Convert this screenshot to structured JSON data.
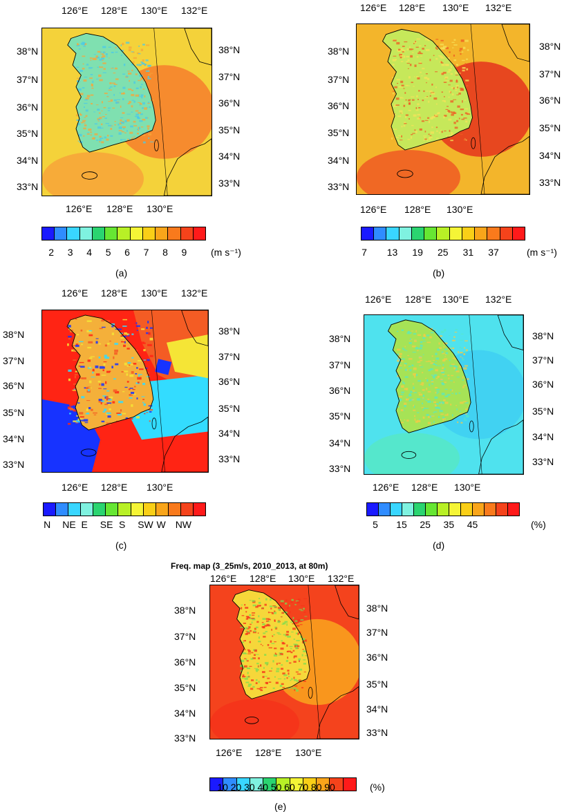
{
  "panels": [
    {
      "id": "a",
      "label": "(a)",
      "lon_top": [
        "126°E",
        "128°E",
        "130°E",
        "132°E"
      ],
      "lon_bottom": [
        "126°E",
        "128°E",
        "130°E"
      ],
      "lat_left": [
        "38°N",
        "37°N",
        "36°N",
        "35°N",
        "34°N",
        "33°N"
      ],
      "lat_right": [
        "38°N",
        "37°N",
        "36°N",
        "35°N",
        "34°N",
        "33°N"
      ],
      "colorbar": {
        "colors": [
          "#1a1aff",
          "#2f8cff",
          "#39d6ff",
          "#7ff2e0",
          "#2ad470",
          "#66e633",
          "#b8f026",
          "#f5f536",
          "#f9cf17",
          "#f9a51a",
          "#f97a1c",
          "#f5431b",
          "#ff1a1a"
        ],
        "labels": [
          "2",
          "3",
          "4",
          "5",
          "6",
          "7",
          "8",
          "9"
        ],
        "unit": "(m s⁻¹)"
      }
    },
    {
      "id": "b",
      "label": "(b)",
      "lon_top": [
        "126°E",
        "128°E",
        "130°E",
        "132°E"
      ],
      "lon_bottom": [
        "126°E",
        "128°E",
        "130°E"
      ],
      "lat_left": [
        "38°N",
        "37°N",
        "36°N",
        "35°N",
        "34°N",
        "33°N"
      ],
      "lat_right": [
        "38°N",
        "37°N",
        "36°N",
        "35°N",
        "34°N",
        "33°N"
      ],
      "colorbar": {
        "colors": [
          "#1a1aff",
          "#2f8cff",
          "#39d6ff",
          "#7ff2e0",
          "#2ad470",
          "#66e633",
          "#b8f026",
          "#f5f536",
          "#f9cf17",
          "#f9a51a",
          "#f97a1c",
          "#f5431b",
          "#ff1a1a"
        ],
        "labels": [
          "7",
          "13",
          "19",
          "25",
          "31",
          "37"
        ],
        "unit": "(m s⁻¹)"
      }
    },
    {
      "id": "c",
      "label": "(c)",
      "lon_top": [
        "126°E",
        "128°E",
        "130°E",
        "132°E"
      ],
      "lon_bottom": [
        "126°E",
        "128°E",
        "130°E"
      ],
      "lat_left": [
        "38°N",
        "37°N",
        "36°N",
        "35°N",
        "34°N",
        "33°N"
      ],
      "lat_right": [
        "38°N",
        "37°N",
        "36°N",
        "35°N",
        "34°N",
        "33°N"
      ],
      "colorbar": {
        "colors": [
          "#1a1aff",
          "#2f8cff",
          "#39d6ff",
          "#7ff2e0",
          "#2ad470",
          "#66e633",
          "#b8f026",
          "#f5f536",
          "#f9cf17",
          "#f9a51a",
          "#f97a1c",
          "#f5431b",
          "#ff1a1a"
        ],
        "labels": [
          "N",
          "NE",
          "E",
          "SE",
          "S",
          "SW",
          "W",
          "NW"
        ],
        "unit": ""
      }
    },
    {
      "id": "d",
      "label": "(d)",
      "lon_top": [
        "126°E",
        "128°E",
        "130°E",
        "132°E"
      ],
      "lon_bottom": [
        "126°E",
        "128°E",
        "130°E"
      ],
      "lat_left": [
        "38°N",
        "37°N",
        "36°N",
        "35°N",
        "34°N",
        "33°N"
      ],
      "lat_right": [
        "38°N",
        "37°N",
        "36°N",
        "35°N",
        "34°N",
        "33°N"
      ],
      "colorbar": {
        "colors": [
          "#1a1aff",
          "#2f8cff",
          "#39d6ff",
          "#7ff2e0",
          "#2ad470",
          "#66e633",
          "#b8f026",
          "#f5f536",
          "#f9cf17",
          "#f9a51a",
          "#f97a1c",
          "#f5431b",
          "#ff1a1a"
        ],
        "labels": [
          "5",
          "15",
          "25",
          "35",
          "45"
        ],
        "unit": "(%)"
      }
    },
    {
      "id": "e",
      "label": "(e)",
      "title": "Freq. map (3_25m/s, 2010_2013, at 80m)",
      "lon_top": [
        "126°E",
        "128°E",
        "130°E",
        "132°E"
      ],
      "lon_bottom": [
        "126°E",
        "128°E",
        "130°E"
      ],
      "lat_left": [
        "38°N",
        "37°N",
        "36°N",
        "35°N",
        "34°N",
        "33°N"
      ],
      "lat_right": [
        "38°N",
        "37°N",
        "36°N",
        "35°N",
        "34°N",
        "33°N"
      ],
      "colorbar": {
        "colors": [
          "#1a1aff",
          "#2f8cff",
          "#39d6ff",
          "#7ff2e0",
          "#2ad470",
          "#b8f026",
          "#f5f536",
          "#f9cf17",
          "#f9a51a",
          "#f5431b",
          "#ff1a1a"
        ],
        "labels": [
          "10",
          "20",
          "30",
          "40",
          "50",
          "60",
          "70",
          "80",
          "90"
        ],
        "unit": "(%)"
      }
    }
  ],
  "fields": {
    "a": {
      "sea": "#f4d23a",
      "land": "#7fe0b0",
      "land_hi": "#49c9e8",
      "offshore": "#f7a53a",
      "se": "#f6832d"
    },
    "b": {
      "sea": "#f3b52b",
      "land": "#c6e85a",
      "land_hi": "#f6e35a",
      "offshore": "#ef5a23",
      "se": "#e53b1e"
    },
    "c": {
      "sea": "#f45c24",
      "land": "#f4b03a",
      "west": "#1733ff",
      "cyan": "#33dcff",
      "yellow": "#f5e536",
      "red": "#ff2414"
    },
    "d": {
      "sea": "#4fe2ee",
      "land": "#a6e356",
      "land_hi": "#f7c946",
      "offshore": "#56e8c6",
      "se": "#3fd0f2"
    },
    "e": {
      "sea": "#f4431d",
      "land": "#f6d73a",
      "land_hi": "#79de4f",
      "offshore": "#f5321a",
      "se": "#f9a01e"
    }
  }
}
